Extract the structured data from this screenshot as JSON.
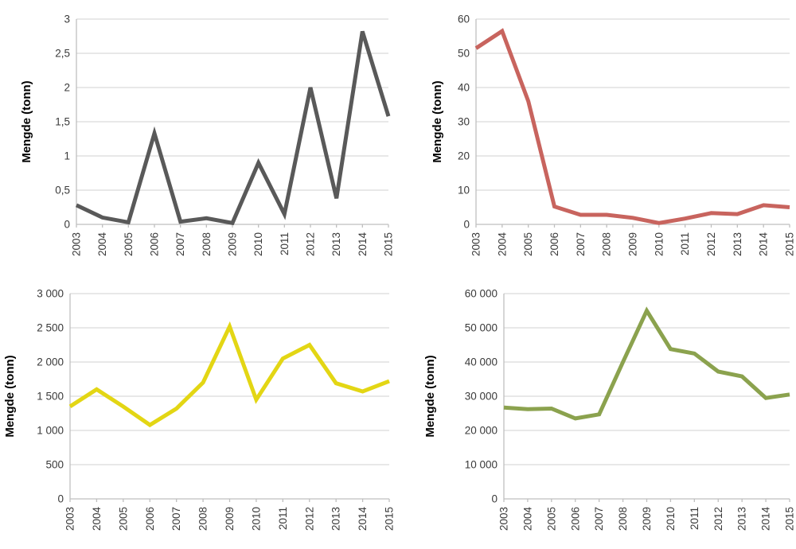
{
  "page": {
    "background": "#ffffff",
    "description": "Four line charts of quantity (tonnes) by year, 2003-2015"
  },
  "styles": {
    "grid_color": "#d9d9d9",
    "axis_color": "#bfbfbf",
    "tick_label_color": "#3a3a3a",
    "axis_title_color": "#000000"
  },
  "chart_data": [
    {
      "id": "top-left",
      "type": "line",
      "title": "",
      "ylabel": "Mengde (tonn)",
      "xlabel": "",
      "line_color": "#595959",
      "grid": true,
      "legend": "none",
      "x_tick_rotation": -90,
      "ylim": [
        0,
        3
      ],
      "y_ticks": {
        "values": [
          0,
          0.5,
          1,
          1.5,
          2,
          2.5,
          3
        ],
        "labels": [
          "0",
          "0,5",
          "1",
          "1,5",
          "2",
          "2,5",
          "3"
        ]
      },
      "categories": [
        "2003",
        "2004",
        "2005",
        "2006",
        "2007",
        "2008",
        "2009",
        "2010",
        "2011",
        "2012",
        "2013",
        "2014",
        "2015"
      ],
      "values": [
        0.28,
        0.1,
        0.03,
        1.33,
        0.04,
        0.09,
        0.02,
        0.9,
        0.15,
        2.0,
        0.38,
        2.82,
        1.58
      ]
    },
    {
      "id": "top-right",
      "type": "line",
      "title": "",
      "ylabel": "Mengde (tonn)",
      "xlabel": "",
      "line_color": "#c8645e",
      "grid": true,
      "legend": "none",
      "x_tick_rotation": -90,
      "ylim": [
        0,
        60
      ],
      "y_ticks": {
        "values": [
          0,
          10,
          20,
          30,
          40,
          50,
          60
        ],
        "labels": [
          "0",
          "10",
          "20",
          "30",
          "40",
          "50",
          "60"
        ]
      },
      "categories": [
        "2003",
        "2004",
        "2005",
        "2006",
        "2007",
        "2008",
        "2009",
        "2010",
        "2011",
        "2012",
        "2013",
        "2014",
        "2015"
      ],
      "values": [
        51.5,
        56.5,
        36,
        5.2,
        2.8,
        2.8,
        1.9,
        0.4,
        1.7,
        3.3,
        3.0,
        5.6,
        5.0
      ]
    },
    {
      "id": "bottom-left",
      "type": "line",
      "title": "",
      "ylabel": "Mengde (tonn)",
      "xlabel": "",
      "line_color": "#e3d614",
      "grid": true,
      "legend": "none",
      "x_tick_rotation": -90,
      "ylim": [
        0,
        3000
      ],
      "y_ticks": {
        "values": [
          0,
          500,
          1000,
          1500,
          2000,
          2500,
          3000
        ],
        "labels": [
          "0",
          "500",
          "1 000",
          "1 500",
          "2 000",
          "2 500",
          "3 000"
        ]
      },
      "categories": [
        "2003",
        "2004",
        "2005",
        "2006",
        "2007",
        "2008",
        "2009",
        "2010",
        "2011",
        "2012",
        "2013",
        "2014",
        "2015"
      ],
      "values": [
        1350,
        1600,
        1350,
        1080,
        1320,
        1700,
        2520,
        1450,
        2050,
        2250,
        1690,
        1570,
        1720
      ]
    },
    {
      "id": "bottom-right",
      "type": "line",
      "title": "",
      "ylabel": "Mengde (tonn)",
      "xlabel": "",
      "line_color": "#8ba24e",
      "grid": true,
      "legend": "none",
      "x_tick_rotation": -90,
      "ylim": [
        0,
        60000
      ],
      "y_ticks": {
        "values": [
          0,
          10000,
          20000,
          30000,
          40000,
          50000,
          60000
        ],
        "labels": [
          "0",
          "10 000",
          "20 000",
          "30 000",
          "40 000",
          "50 000",
          "60 000"
        ]
      },
      "categories": [
        "2003",
        "2004",
        "2005",
        "2006",
        "2007",
        "2008",
        "2009",
        "2010",
        "2011",
        "2012",
        "2013",
        "2014",
        "2015"
      ],
      "values": [
        26700,
        26200,
        26400,
        23500,
        24700,
        40000,
        55000,
        43800,
        42500,
        37200,
        35800,
        29500,
        30500
      ]
    }
  ]
}
